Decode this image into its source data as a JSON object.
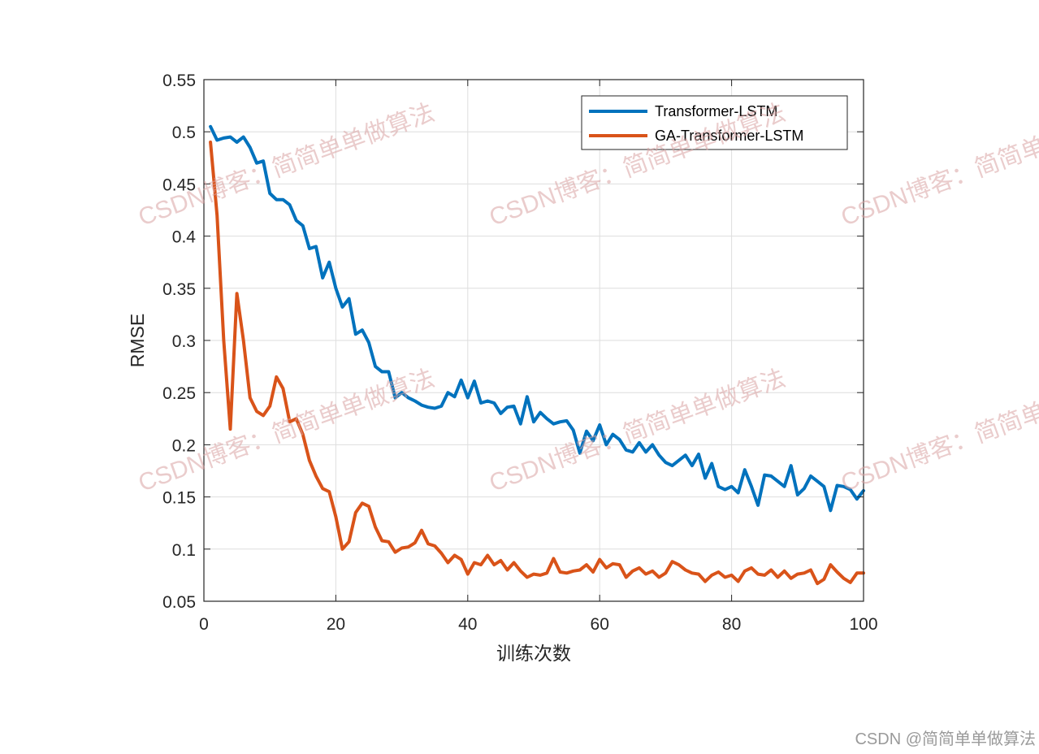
{
  "chart_data": {
    "type": "line",
    "title": "",
    "xlabel": "训练次数",
    "ylabel": "RMSE",
    "xlim": [
      0,
      100
    ],
    "ylim": [
      0.05,
      0.55
    ],
    "xticks": [
      0,
      20,
      40,
      60,
      80,
      100
    ],
    "xtick_labels": [
      "0",
      "20",
      "40",
      "60",
      "80",
      "100"
    ],
    "yticks": [
      0.05,
      0.1,
      0.15,
      0.2,
      0.25,
      0.3,
      0.35,
      0.4,
      0.45,
      0.5,
      0.55
    ],
    "ytick_labels": [
      "0.05",
      "0.1",
      "0.15",
      "0.2",
      "0.25",
      "0.3",
      "0.35",
      "0.4",
      "0.45",
      "0.5",
      "0.55"
    ],
    "grid": true,
    "legend_position": "top-right",
    "x": [
      1,
      2,
      3,
      4,
      5,
      6,
      7,
      8,
      9,
      10,
      11,
      12,
      13,
      14,
      15,
      16,
      17,
      18,
      19,
      20,
      21,
      22,
      23,
      24,
      25,
      26,
      27,
      28,
      29,
      30,
      31,
      32,
      33,
      34,
      35,
      36,
      37,
      38,
      39,
      40,
      41,
      42,
      43,
      44,
      45,
      46,
      47,
      48,
      49,
      50,
      51,
      52,
      53,
      54,
      55,
      56,
      57,
      58,
      59,
      60,
      61,
      62,
      63,
      64,
      65,
      66,
      67,
      68,
      69,
      70,
      71,
      72,
      73,
      74,
      75,
      76,
      77,
      78,
      79,
      80,
      81,
      82,
      83,
      84,
      85,
      86,
      87,
      88,
      89,
      90,
      91,
      92,
      93,
      94,
      95,
      96,
      97,
      98,
      99,
      100
    ],
    "series": [
      {
        "name": "Transformer-LSTM",
        "color": "#0072BD",
        "values": [
          0.505,
          0.492,
          0.494,
          0.495,
          0.49,
          0.495,
          0.485,
          0.47,
          0.472,
          0.441,
          0.435,
          0.435,
          0.43,
          0.415,
          0.41,
          0.388,
          0.39,
          0.36,
          0.375,
          0.35,
          0.332,
          0.34,
          0.306,
          0.31,
          0.298,
          0.275,
          0.27,
          0.27,
          0.245,
          0.25,
          0.245,
          0.242,
          0.238,
          0.236,
          0.235,
          0.237,
          0.25,
          0.246,
          0.262,
          0.245,
          0.261,
          0.24,
          0.242,
          0.24,
          0.23,
          0.236,
          0.237,
          0.22,
          0.246,
          0.222,
          0.231,
          0.225,
          0.22,
          0.222,
          0.223,
          0.214,
          0.192,
          0.213,
          0.204,
          0.219,
          0.2,
          0.21,
          0.205,
          0.195,
          0.193,
          0.202,
          0.193,
          0.2,
          0.19,
          0.183,
          0.18,
          0.185,
          0.19,
          0.18,
          0.191,
          0.168,
          0.182,
          0.16,
          0.157,
          0.16,
          0.154,
          0.176,
          0.16,
          0.142,
          0.171,
          0.17,
          0.165,
          0.16,
          0.18,
          0.152,
          0.158,
          0.17,
          0.165,
          0.16,
          0.137,
          0.161,
          0.16,
          0.157,
          0.148,
          0.156
        ]
      },
      {
        "name": "GA-Transformer-LSTM",
        "color": "#D95319",
        "values": [
          0.49,
          0.42,
          0.3,
          0.215,
          0.345,
          0.3,
          0.245,
          0.232,
          0.228,
          0.237,
          0.265,
          0.254,
          0.222,
          0.225,
          0.21,
          0.185,
          0.17,
          0.158,
          0.155,
          0.131,
          0.1,
          0.107,
          0.135,
          0.144,
          0.141,
          0.121,
          0.108,
          0.107,
          0.097,
          0.101,
          0.102,
          0.106,
          0.118,
          0.105,
          0.103,
          0.096,
          0.087,
          0.094,
          0.09,
          0.076,
          0.087,
          0.085,
          0.094,
          0.085,
          0.089,
          0.08,
          0.087,
          0.079,
          0.073,
          0.076,
          0.075,
          0.077,
          0.091,
          0.078,
          0.077,
          0.079,
          0.08,
          0.085,
          0.078,
          0.09,
          0.082,
          0.086,
          0.085,
          0.073,
          0.079,
          0.082,
          0.076,
          0.079,
          0.073,
          0.077,
          0.088,
          0.085,
          0.08,
          0.077,
          0.076,
          0.069,
          0.075,
          0.078,
          0.073,
          0.075,
          0.069,
          0.079,
          0.082,
          0.076,
          0.075,
          0.08,
          0.073,
          0.079,
          0.072,
          0.076,
          0.077,
          0.08,
          0.067,
          0.071,
          0.085,
          0.078,
          0.072,
          0.068,
          0.077,
          0.077
        ]
      }
    ]
  },
  "watermark": {
    "text": "CSDN博客：简简单单做算法",
    "color": "#d9a3a3"
  },
  "credit": "CSDN @简简单单做算法"
}
